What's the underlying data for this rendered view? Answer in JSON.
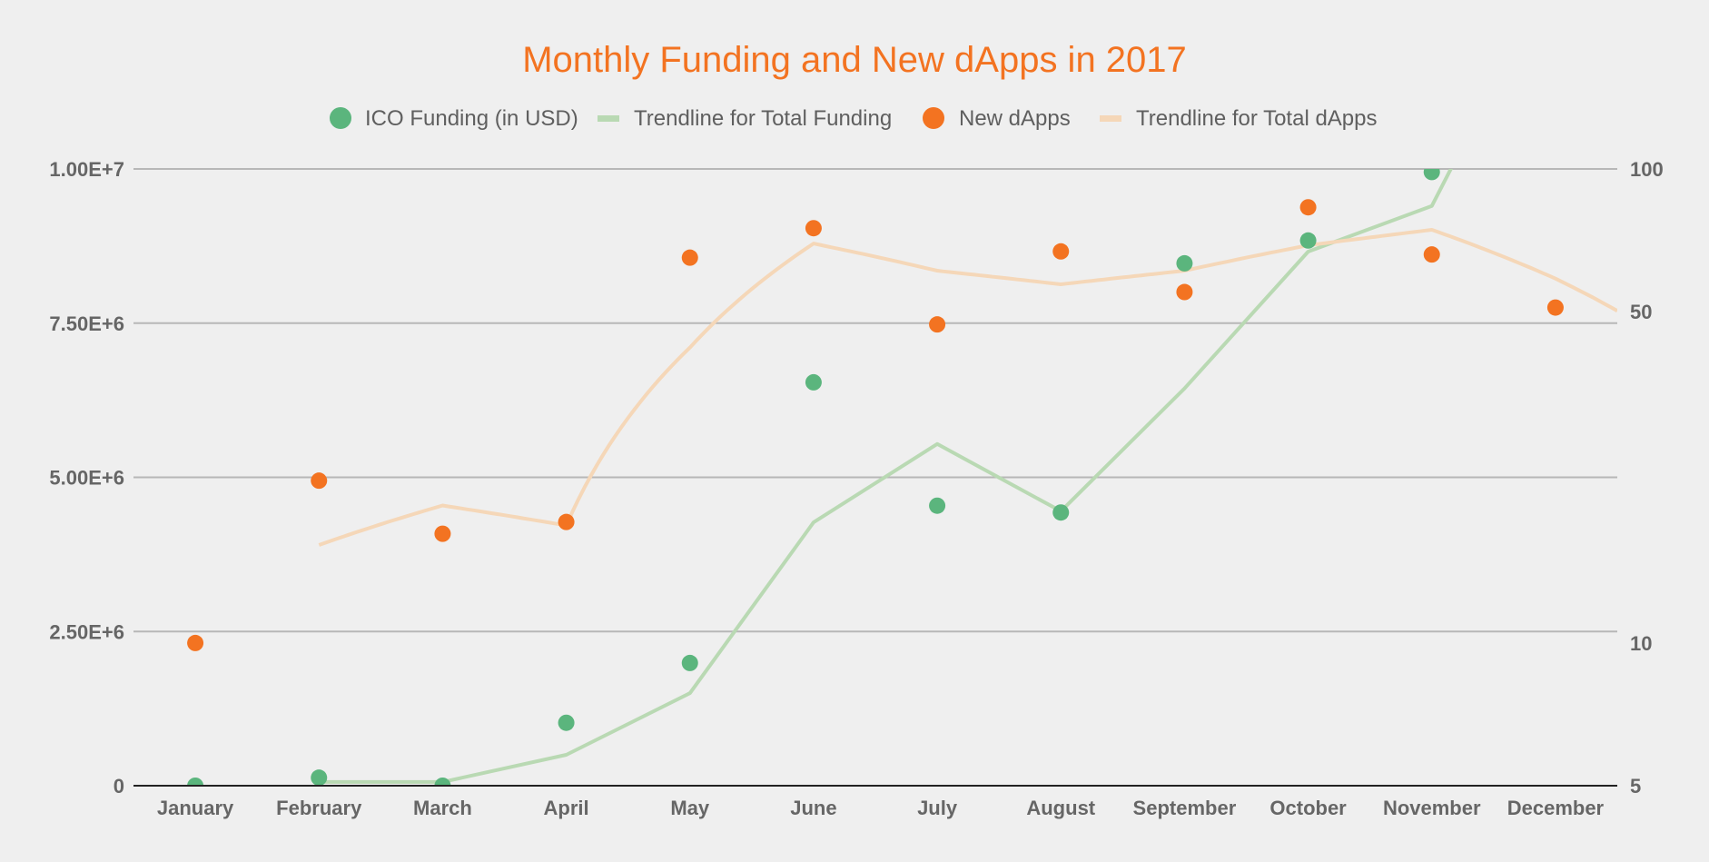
{
  "chart_data": {
    "type": "scatter",
    "title": "Monthly Funding and New dApps in 2017",
    "xlabel": "",
    "ylabel_left": "",
    "ylabel_right": "",
    "categories": [
      "January",
      "February",
      "March",
      "April",
      "May",
      "June",
      "July",
      "August",
      "September",
      "October",
      "November",
      "December"
    ],
    "legend_position": "top",
    "grid": true,
    "left_axis": {
      "scale": "linear",
      "range": [
        0,
        10000000
      ],
      "ticks": [
        0,
        2500000,
        5000000,
        7500000,
        10000000
      ],
      "tick_labels": [
        "0",
        "2.50E+6",
        "5.00E+6",
        "7.50E+6",
        "1.00E+7"
      ]
    },
    "right_axis": {
      "scale": "log",
      "range": [
        5,
        100
      ],
      "ticks": [
        5,
        10,
        50,
        100
      ],
      "tick_labels": [
        "5",
        "10",
        "50",
        "100"
      ]
    },
    "series": [
      {
        "name": "ICO Funding (in USD)",
        "kind": "points",
        "axis": "left",
        "color": "#5bb57d",
        "values": [
          0,
          130000,
          0,
          1020000,
          1990000,
          6540000,
          4540000,
          4430000,
          8470000,
          8840000,
          9950000,
          null
        ]
      },
      {
        "name": "Trendline for Total Funding",
        "kind": "line",
        "axis": "left",
        "color": "#b9d9b3",
        "values": [
          null,
          60000,
          60000,
          500000,
          1500000,
          4270000,
          5540000,
          4450000,
          6440000,
          8660000,
          9400000,
          13300000
        ]
      },
      {
        "name": "New dApps",
        "kind": "points",
        "axis": "right",
        "color": "#f37321",
        "values": [
          10,
          22,
          17,
          18,
          65,
          75,
          47,
          67,
          55,
          83,
          66,
          51
        ]
      },
      {
        "name": "Trendline for Total dApps",
        "kind": "line",
        "axis": "right",
        "color": "#f5d7b8",
        "values": [
          null,
          16.1,
          19.5,
          17.7,
          42,
          69.6,
          61,
          57.1,
          61,
          69,
          74.4,
          58.7
        ],
        "extends_to_edge": 50.2
      }
    ]
  }
}
